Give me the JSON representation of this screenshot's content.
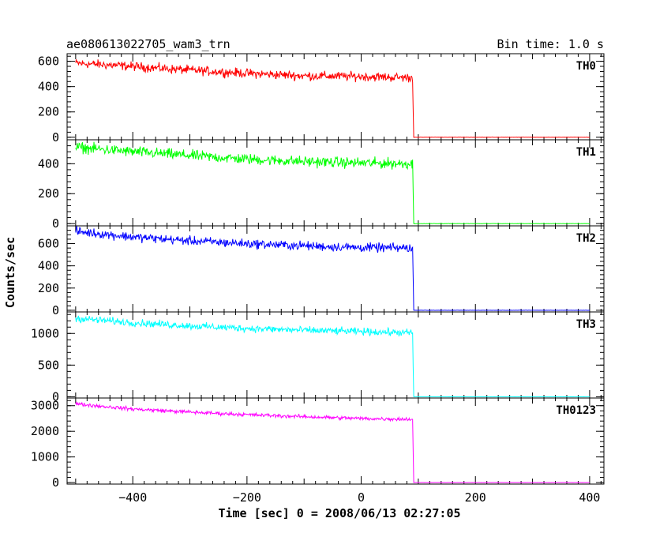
{
  "chart_data": {
    "type": "line",
    "title_left": "ae080613022705_wam3_trn",
    "title_right": "Bin time: 1.0 s",
    "xlabel": "Time [sec] 0 = 2008/06/13 02:27:05",
    "ylabel": "Counts/sec",
    "xlim": [
      -515,
      425
    ],
    "x_ticks": [
      -400,
      -200,
      0,
      200,
      400
    ],
    "grid": false,
    "panels": [
      {
        "name": "TH0",
        "color": "#ff0000",
        "ylim": [
          -20,
          660
        ],
        "y_ticks": [
          0,
          200,
          400,
          600
        ],
        "y_tick_labels": [
          "0",
          "200",
          "400",
          "600"
        ],
        "series_x": [
          -500,
          -400,
          -300,
          -200,
          -100,
          0,
          90,
          92,
          400
        ],
        "series_y": [
          585,
          560,
          530,
          505,
          485,
          480,
          470,
          0,
          0
        ],
        "noise": 22
      },
      {
        "name": "TH1",
        "color": "#00ff00",
        "ylim": [
          -15,
          560
        ],
        "y_ticks": [
          0,
          200,
          400
        ],
        "y_tick_labels": [
          "0",
          "200",
          "400"
        ],
        "series_x": [
          -500,
          -400,
          -300,
          -200,
          -100,
          0,
          90,
          92,
          400
        ],
        "series_y": [
          510,
          480,
          455,
          430,
          415,
          405,
          400,
          0,
          0
        ],
        "noise": 22
      },
      {
        "name": "TH2",
        "color": "#0000ff",
        "ylim": [
          -15,
          760
        ],
        "y_ticks": [
          0,
          200,
          400,
          600
        ],
        "y_tick_labels": [
          "0",
          "200",
          "400",
          "600"
        ],
        "series_x": [
          -500,
          -400,
          -300,
          -200,
          -100,
          0,
          90,
          92,
          400
        ],
        "series_y": [
          710,
          660,
          625,
          600,
          580,
          565,
          560,
          0,
          0
        ],
        "noise": 25
      },
      {
        "name": "TH3",
        "color": "#00ffff",
        "ylim": [
          -20,
          1340
        ],
        "y_ticks": [
          0,
          500,
          1000
        ],
        "y_tick_labels": [
          "0",
          "500",
          "1000"
        ],
        "series_x": [
          -500,
          -400,
          -300,
          -200,
          -100,
          0,
          90,
          92,
          400
        ],
        "series_y": [
          1240,
          1170,
          1120,
          1080,
          1050,
          1030,
          1010,
          0,
          0
        ],
        "noise": 35
      },
      {
        "name": "TH0123",
        "color": "#ff00ff",
        "ylim": [
          -60,
          3300
        ],
        "y_ticks": [
          0,
          1000,
          2000,
          3000
        ],
        "y_tick_labels": [
          "0",
          "1000",
          "2000",
          "3000"
        ],
        "series_x": [
          -500,
          -400,
          -300,
          -200,
          -100,
          0,
          90,
          92,
          400
        ],
        "series_y": [
          3070,
          2870,
          2750,
          2650,
          2570,
          2500,
          2470,
          0,
          0
        ],
        "noise": 45
      }
    ]
  }
}
